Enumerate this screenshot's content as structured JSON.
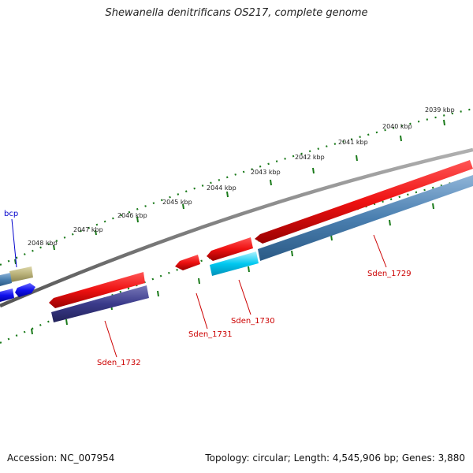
{
  "title": "Shewanella denitrificans OS217, complete genome",
  "footer": {
    "accession": "Accession: NC_007954",
    "stats": "Topology: circular; Length: 4,545,906 bp; Genes: 3,880"
  },
  "scale_ticks": [
    "2048 kbp",
    "2047 kbp",
    "2046 kbp",
    "2045 kbp",
    "2044 kbp",
    "2043 kbp",
    "2042 kbp",
    "2041 kbp",
    "2040 kbp",
    "2039 kbp"
  ],
  "genes": [
    {
      "label": "bcp",
      "strand": "plus"
    },
    {
      "label": "Sden_1732",
      "strand": "plus"
    },
    {
      "label": "Sden_1731",
      "strand": "plus"
    },
    {
      "label": "Sden_1730",
      "strand": "minus"
    },
    {
      "label": "Sden_1729",
      "strand": "minus"
    }
  ],
  "colors": {
    "backbone": "#808080",
    "tick_green": "#1a7a1a",
    "gene_red": "#ee1111",
    "gene_steelblue": "#4a7fb0",
    "gene_cyan": "#00c8f0",
    "gene_navy": "#3a3a8a",
    "gene_olive": "#b8b078",
    "gene_blue": "#1010ee",
    "label_red": "#cc0000",
    "label_blue": "#0000cc"
  }
}
